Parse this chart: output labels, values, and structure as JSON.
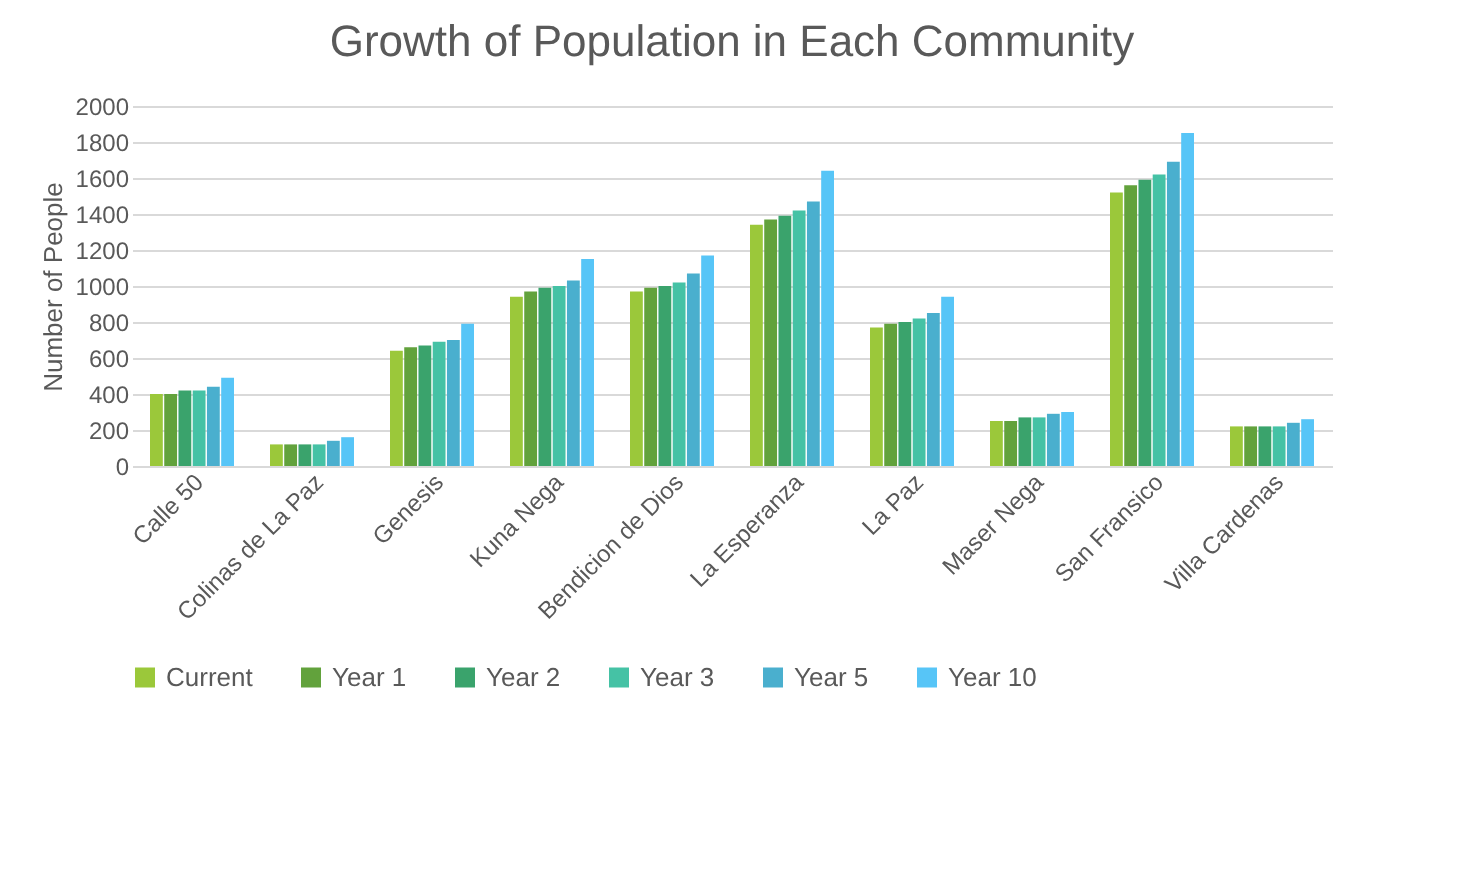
{
  "chart_data": {
    "type": "bar",
    "title": "Growth of Population in Each Community",
    "ylabel": "Number  of People",
    "categories": [
      "Calle 50",
      "Colinas de La Paz",
      "Genesis",
      "Kuna Nega",
      "Bendicion de Dios",
      "La Esperanza",
      "La Paz",
      "Maser Nega",
      "San Fransico",
      "Villa Cardenas"
    ],
    "series": [
      {
        "name": "Current",
        "color": "#9bc83a",
        "values": [
          400,
          120,
          640,
          940,
          970,
          1340,
          770,
          250,
          1520,
          220
        ]
      },
      {
        "name": "Year 1",
        "color": "#62a23c",
        "values": [
          400,
          120,
          660,
          970,
          990,
          1370,
          790,
          250,
          1560,
          220
        ]
      },
      {
        "name": "Year 2",
        "color": "#3aa36c",
        "values": [
          420,
          120,
          670,
          990,
          1000,
          1390,
          800,
          270,
          1590,
          220
        ]
      },
      {
        "name": "Year 3",
        "color": "#45c2a5",
        "values": [
          420,
          120,
          690,
          1000,
          1020,
          1420,
          820,
          270,
          1620,
          220
        ]
      },
      {
        "name": "Year 5",
        "color": "#4aafce",
        "values": [
          440,
          140,
          700,
          1030,
          1070,
          1470,
          850,
          290,
          1690,
          240
        ]
      },
      {
        "name": "Year 10",
        "color": "#57c5f7",
        "values": [
          490,
          160,
          790,
          1150,
          1170,
          1640,
          940,
          300,
          1850,
          260
        ]
      }
    ],
    "ylim": [
      0,
      2000
    ],
    "yticks": [
      0,
      200,
      400,
      600,
      800,
      1000,
      1200,
      1400,
      1600,
      1800,
      2000
    ],
    "grid": "y",
    "legend": "bottom"
  }
}
